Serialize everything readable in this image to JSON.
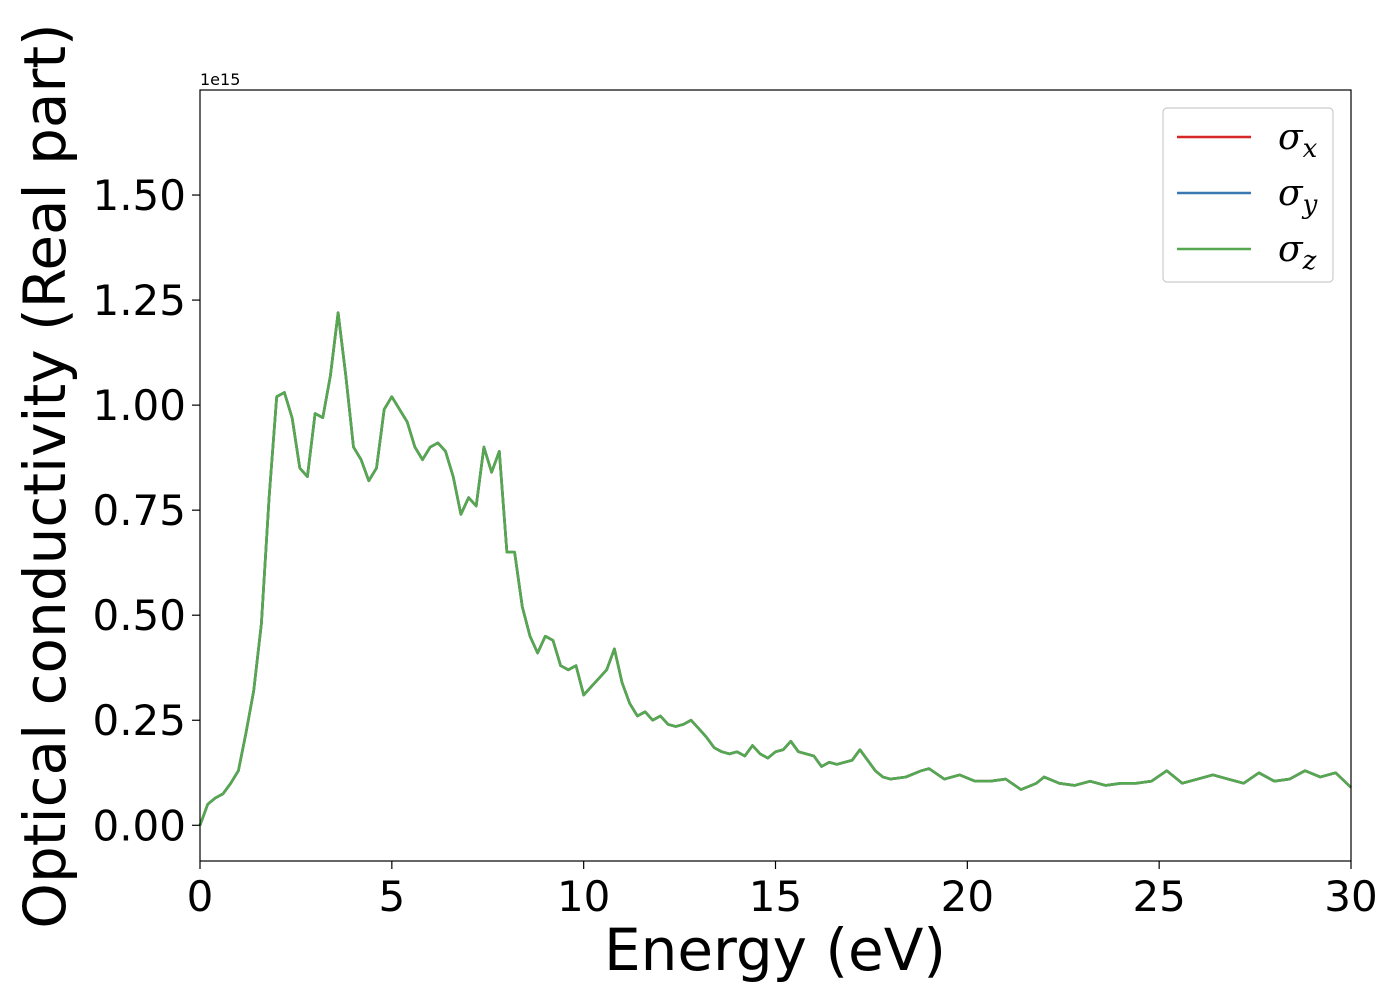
{
  "chart_data": {
    "type": "line",
    "xlabel": "Energy (eV)",
    "ylabel": "Optical conductivity (Real part)",
    "offset_text": "1e15",
    "xlim": [
      0,
      30
    ],
    "ylim": [
      -0.085,
      1.75
    ],
    "y_scale_note": "1e15",
    "xticks": [
      0,
      5,
      10,
      15,
      20,
      25,
      30
    ],
    "yticks": [
      0.0,
      0.25,
      0.5,
      0.75,
      1.0,
      1.25,
      1.5
    ],
    "ytick_labels": [
      "0.00",
      "0.25",
      "0.50",
      "0.75",
      "1.00",
      "1.25",
      "1.50"
    ],
    "grid": false,
    "legend": {
      "position": "top-right",
      "entries": [
        {
          "base": "σ",
          "sub": "x",
          "color": "#d62728"
        },
        {
          "base": "σ",
          "sub": "y",
          "color": "#3a78b0"
        },
        {
          "base": "σ",
          "sub": "z",
          "color": "#55a84f"
        }
      ]
    },
    "series": [
      {
        "color": "#d62728"
      },
      {
        "color": "#3a78b0"
      },
      {
        "color": "#55a84f"
      }
    ],
    "x": [
      0.0,
      0.2,
      0.4,
      0.6,
      0.8,
      1.0,
      1.2,
      1.4,
      1.6,
      1.8,
      2.0,
      2.2,
      2.4,
      2.6,
      2.8,
      3.0,
      3.2,
      3.4,
      3.6,
      3.8,
      4.0,
      4.2,
      4.4,
      4.6,
      4.8,
      5.0,
      5.2,
      5.4,
      5.6,
      5.8,
      6.0,
      6.2,
      6.4,
      6.6,
      6.8,
      7.0,
      7.2,
      7.4,
      7.6,
      7.8,
      8.0,
      8.2,
      8.4,
      8.6,
      8.8,
      9.0,
      9.2,
      9.4,
      9.6,
      9.8,
      10.0,
      10.2,
      10.4,
      10.6,
      10.8,
      11.0,
      11.2,
      11.4,
      11.6,
      11.8,
      12.0,
      12.2,
      12.4,
      12.6,
      12.8,
      13.0,
      13.2,
      13.4,
      13.6,
      13.8,
      14.0,
      14.2,
      14.4,
      14.6,
      14.8,
      15.0,
      15.2,
      15.4,
      15.6,
      15.8,
      16.0,
      16.2,
      16.4,
      16.6,
      16.8,
      17.0,
      17.2,
      17.4,
      17.6,
      17.8,
      18.0,
      18.4,
      18.8,
      19.0,
      19.4,
      19.8,
      20.2,
      20.6,
      21.0,
      21.4,
      21.8,
      22.0,
      22.4,
      22.8,
      23.2,
      23.6,
      24.0,
      24.4,
      24.8,
      25.2,
      25.6,
      26.0,
      26.4,
      26.8,
      27.2,
      27.6,
      28.0,
      28.4,
      28.8,
      29.2,
      29.6,
      30.0
    ],
    "y": [
      0.0,
      0.05,
      0.065,
      0.075,
      0.1,
      0.13,
      0.22,
      0.32,
      0.48,
      0.78,
      1.02,
      1.03,
      0.97,
      0.85,
      0.83,
      0.98,
      0.97,
      1.07,
      1.22,
      1.07,
      0.9,
      0.87,
      0.82,
      0.85,
      0.99,
      1.02,
      0.99,
      0.96,
      0.9,
      0.87,
      0.9,
      0.91,
      0.89,
      0.83,
      0.74,
      0.78,
      0.76,
      0.9,
      0.84,
      0.89,
      0.65,
      0.65,
      0.52,
      0.45,
      0.41,
      0.45,
      0.44,
      0.38,
      0.37,
      0.38,
      0.31,
      0.33,
      0.35,
      0.37,
      0.42,
      0.34,
      0.29,
      0.26,
      0.27,
      0.25,
      0.26,
      0.24,
      0.235,
      0.24,
      0.25,
      0.23,
      0.21,
      0.185,
      0.175,
      0.17,
      0.175,
      0.165,
      0.19,
      0.17,
      0.16,
      0.175,
      0.18,
      0.2,
      0.175,
      0.17,
      0.165,
      0.14,
      0.15,
      0.145,
      0.15,
      0.155,
      0.18,
      0.155,
      0.13,
      0.115,
      0.11,
      0.115,
      0.13,
      0.135,
      0.11,
      0.12,
      0.105,
      0.105,
      0.11,
      0.085,
      0.1,
      0.115,
      0.1,
      0.095,
      0.105,
      0.095,
      0.1,
      0.1,
      0.105,
      0.13,
      0.1,
      0.11,
      0.12,
      0.11,
      0.1,
      0.125,
      0.105,
      0.11,
      0.13,
      0.115,
      0.125,
      0.09
    ]
  }
}
